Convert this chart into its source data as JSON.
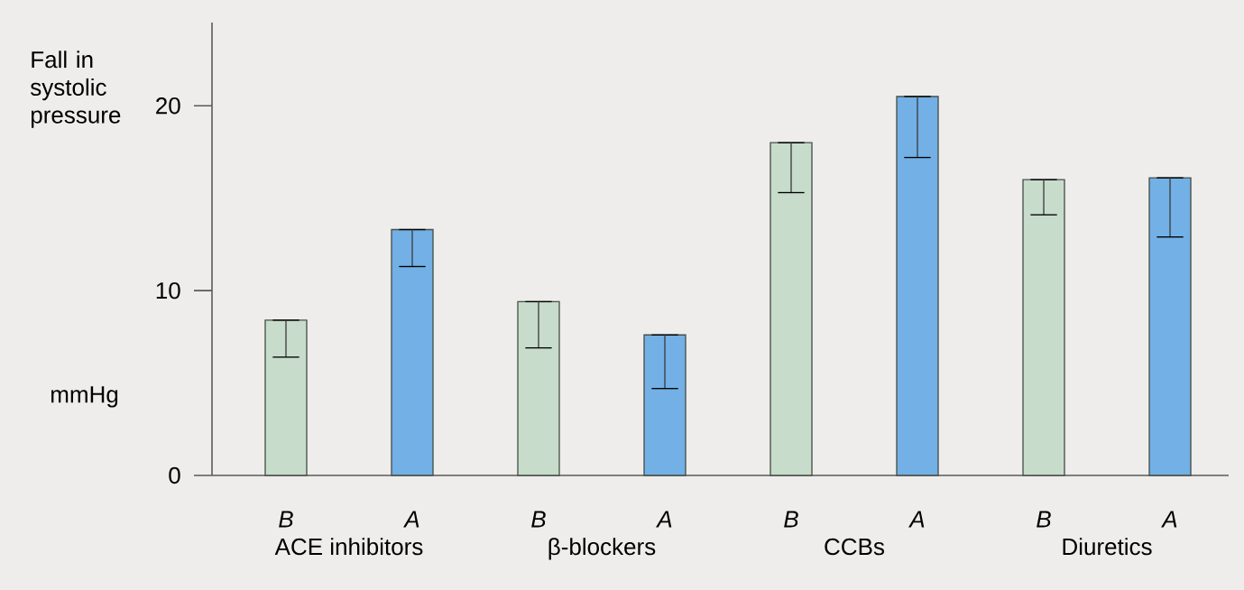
{
  "chart_data": {
    "type": "bar",
    "ylabel": "Fall in systolic pressure",
    "categories": [
      "B",
      "A",
      "B",
      "A",
      "B",
      "A",
      "B",
      "A"
    ],
    "values": [
      8.4,
      13.3,
      9.4,
      7.6,
      18.0,
      20.5,
      16.0,
      16.1
    ],
    "colors": [
      "#c8dccb",
      "#72b0e6",
      "#c8dccb",
      "#72b0e6",
      "#c8dccb",
      "#72b0e6",
      "#c8dccb",
      "#72b0e6"
    ],
    "errors": [
      [
        6.4,
        8.4
      ],
      [
        11.3,
        13.3
      ],
      [
        6.9,
        9.4
      ],
      [
        4.7,
        7.6
      ],
      [
        15.3,
        18.0
      ],
      [
        17.2,
        20.5
      ],
      [
        14.1,
        16.0
      ],
      [
        12.9,
        16.1
      ]
    ],
    "ylim": [
      0,
      24.5
    ],
    "yticks": [
      0,
      10,
      20
    ],
    "annotations": [
      "ACE inhibitors",
      "β-blockers",
      "CCBs",
      "Diuretics",
      "mmHg"
    ]
  }
}
